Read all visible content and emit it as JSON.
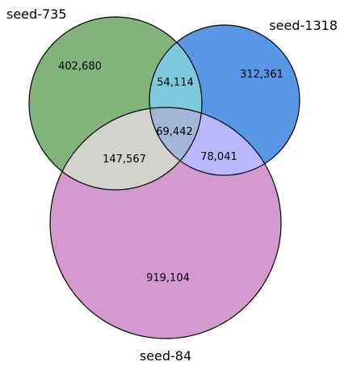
{
  "diagram": {
    "type": "venn3",
    "sets": [
      {
        "name": "seed-735",
        "color": "#82b37b"
      },
      {
        "name": "seed-1318",
        "color": "#5896e6"
      },
      {
        "name": "seed-84",
        "color": "#d49ad0"
      }
    ],
    "regions": {
      "a_only": {
        "label": "402,680",
        "color": "#82b37b"
      },
      "b_only": {
        "label": "312,361",
        "color": "#5896e6"
      },
      "c_only": {
        "label": "919,104",
        "color": "#d49ad0"
      },
      "ab": {
        "label": "54,114",
        "color": "#7ccadc"
      },
      "ac": {
        "label": "147,567",
        "color": "#d3d2cf"
      },
      "bc": {
        "label": "78,041",
        "color": "#b9b8ff"
      },
      "abc": {
        "label": "69,442",
        "color": "#a4b6d6"
      }
    }
  }
}
